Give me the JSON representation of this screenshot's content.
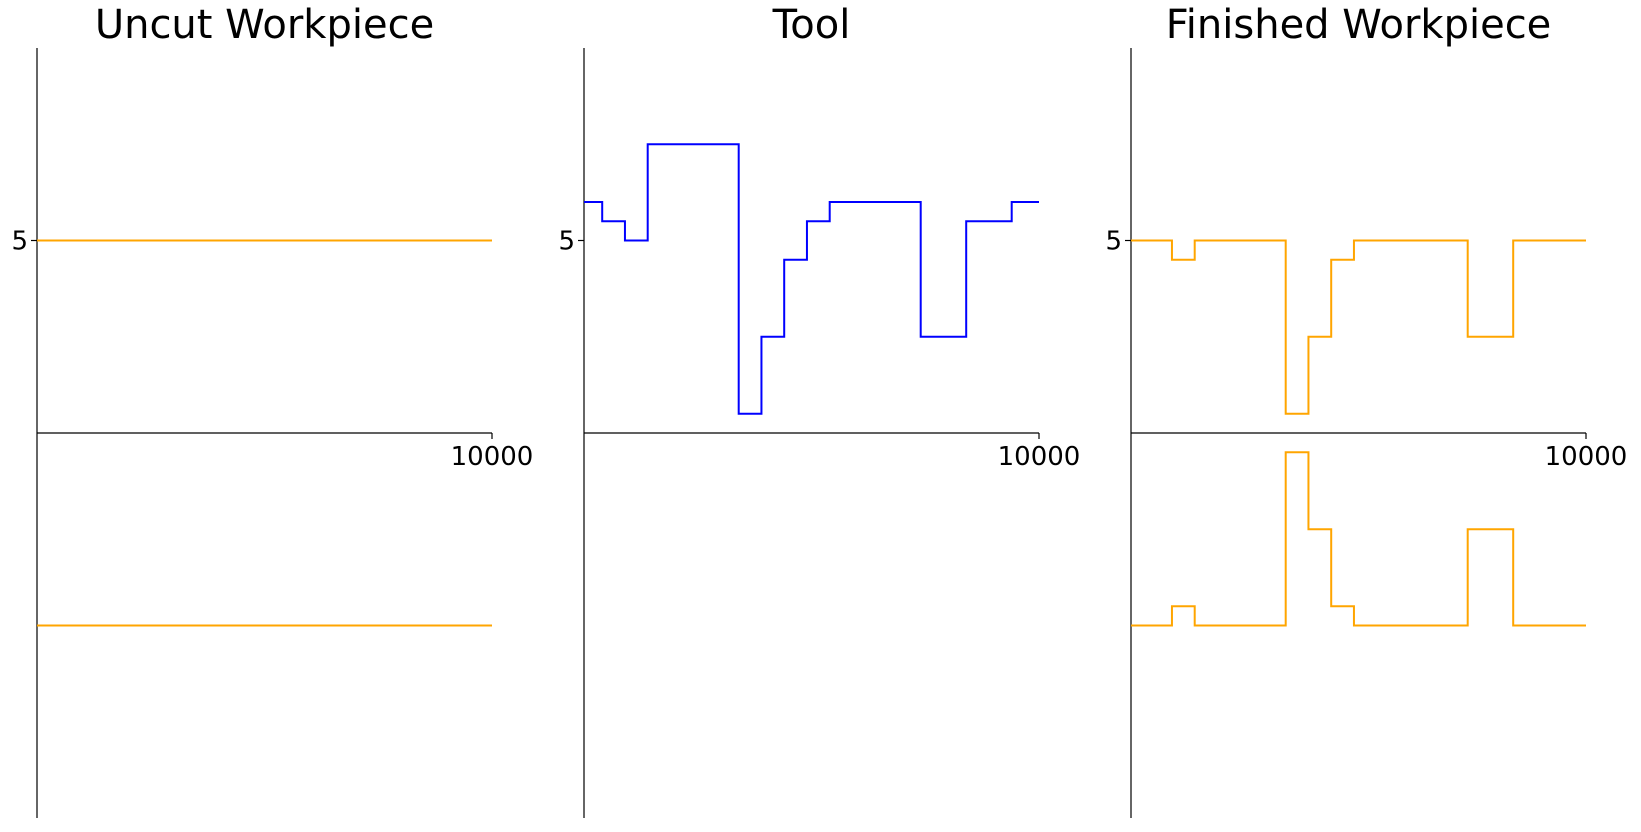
{
  "chart_data": [
    {
      "type": "line",
      "title": "Uncut Workpiece",
      "xlabel": "",
      "ylabel": "",
      "xlim": [
        0,
        10000
      ],
      "ylim": [
        -10,
        10
      ],
      "xticks": [
        10000
      ],
      "xtick_labels": [
        "10000"
      ],
      "yticks": [
        5
      ],
      "ytick_labels": [
        "5"
      ],
      "grid": false,
      "series": [
        {
          "color": "#ffa500",
          "step": true,
          "x": [
            0,
            10000
          ],
          "y": [
            5,
            5
          ]
        },
        {
          "color": "#ffa500",
          "step": true,
          "x": [
            0,
            10000
          ],
          "y": [
            -5,
            -5
          ]
        }
      ]
    },
    {
      "type": "line",
      "title": "Tool",
      "xlabel": "",
      "ylabel": "",
      "xlim": [
        0,
        10000
      ],
      "ylim": [
        -10,
        10
      ],
      "xticks": [
        10000
      ],
      "xtick_labels": [
        "10000"
      ],
      "yticks": [
        5
      ],
      "yticks_labels_note": "",
      "ytick_labels": [
        "5"
      ],
      "grid": false,
      "series": [
        {
          "color": "#0000ff",
          "step": true,
          "x": [
            0,
            400,
            900,
            1400,
            3400,
            3900,
            4400,
            4900,
            5400,
            7400,
            8400,
            9400,
            10000
          ],
          "y": [
            6,
            5.5,
            5,
            7.5,
            0.5,
            2.5,
            4.5,
            5.5,
            6,
            2.5,
            5.5,
            6,
            6
          ]
        }
      ]
    },
    {
      "type": "line",
      "title": "Finished Workpiece",
      "xlabel": "",
      "ylabel": "",
      "xlim": [
        0,
        10000
      ],
      "ylim": [
        -10,
        10
      ],
      "xticks": [
        10000
      ],
      "xtick_labels": [
        "10000"
      ],
      "yticks": [
        5
      ],
      "ytick_labels": [
        "5"
      ],
      "grid": false,
      "series": [
        {
          "color": "#ffa500",
          "step": true,
          "x": [
            0,
            900,
            1400,
            3400,
            3900,
            4400,
            4900,
            7400,
            8400,
            10000
          ],
          "y": [
            5,
            4.5,
            5,
            0.5,
            2.5,
            4.5,
            5,
            2.5,
            5,
            5
          ]
        },
        {
          "color": "#ffa500",
          "step": true,
          "x": [
            0,
            900,
            1400,
            3400,
            3900,
            4400,
            4900,
            7400,
            8400,
            10000
          ],
          "y": [
            -5,
            -4.5,
            -5,
            -0.5,
            -2.5,
            -4.5,
            -5,
            -2.5,
            -5,
            -5
          ]
        }
      ]
    }
  ]
}
